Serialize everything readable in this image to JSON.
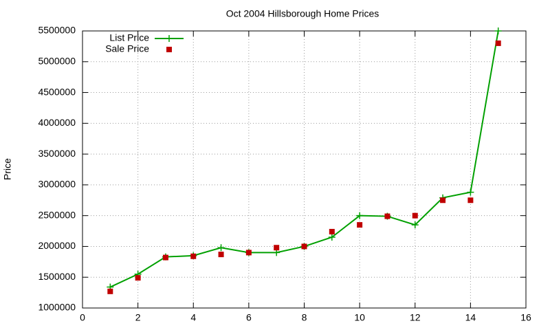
{
  "chart_data": {
    "type": "line",
    "title": "Oct 2004 Hillsborough Home Prices",
    "y_label": "Price",
    "x": [
      1,
      2,
      3,
      4,
      5,
      6,
      7,
      8,
      9,
      10,
      11,
      12,
      13,
      14,
      15
    ],
    "series": [
      {
        "name": "List Price",
        "color": "#00a000",
        "style": "linespoints",
        "values": [
          1340000,
          1550000,
          1830000,
          1850000,
          1980000,
          1900000,
          1900000,
          2000000,
          2150000,
          2500000,
          2490000,
          2350000,
          2790000,
          2880000,
          5500000
        ]
      },
      {
        "name": "Sale Price",
        "color": "#c00000",
        "style": "points",
        "values": [
          1270000,
          1490000,
          1820000,
          1840000,
          1870000,
          1900000,
          1980000,
          2000000,
          2240000,
          2350000,
          2490000,
          2500000,
          2750000,
          2750000,
          5300000
        ]
      }
    ],
    "xlim": [
      0,
      16
    ],
    "xticks": [
      0,
      2,
      4,
      6,
      8,
      10,
      12,
      14,
      16
    ],
    "ylim": [
      1000000,
      5500000
    ],
    "yticks": [
      1000000,
      1500000,
      2000000,
      2500000,
      3000000,
      3500000,
      4000000,
      4500000,
      5000000,
      5500000
    ],
    "grid": true,
    "legend": "top-left"
  }
}
